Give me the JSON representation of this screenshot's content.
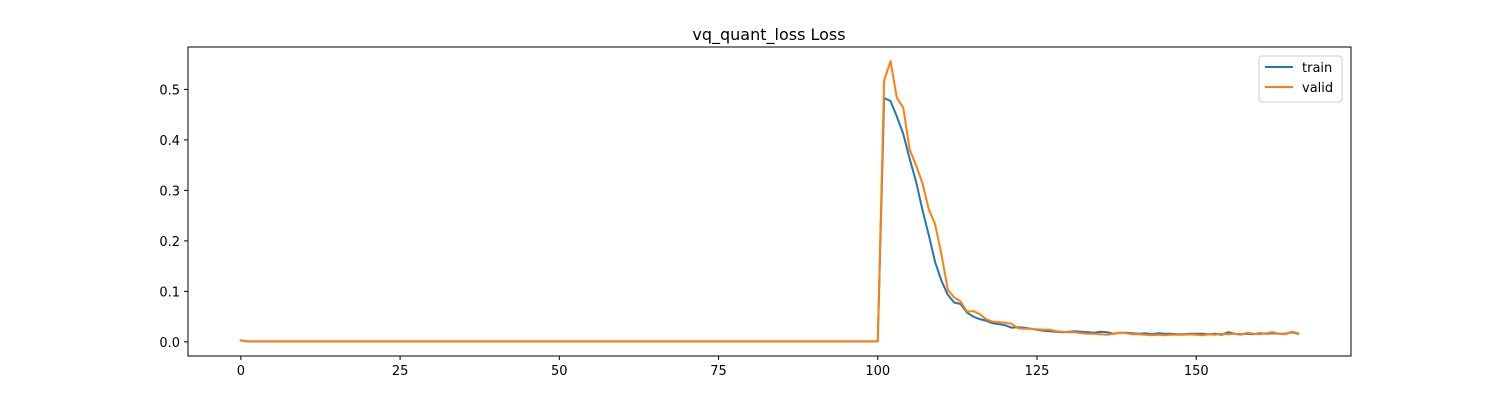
{
  "chart_data": {
    "type": "line",
    "title": "vq_quant_loss Loss",
    "xlabel": "",
    "ylabel": "",
    "xlim": [
      -8.3,
      174.3
    ],
    "ylim": [
      -0.028,
      0.584
    ],
    "xticks": [
      0,
      25,
      50,
      75,
      100,
      125,
      150
    ],
    "yticks": [
      0.0,
      0.1,
      0.2,
      0.3,
      0.4,
      0.5
    ],
    "ytick_labels": [
      "0.0",
      "0.1",
      "0.2",
      "0.3",
      "0.4",
      "0.5"
    ],
    "grid": false,
    "legend": "top-right",
    "series": [
      {
        "name": "train",
        "color": "#1f77b4",
        "x": [
          0,
          1,
          2,
          3,
          4,
          5,
          10,
          20,
          30,
          40,
          50,
          60,
          70,
          80,
          90,
          95,
          99,
          100,
          101,
          102,
          103,
          104,
          105,
          106,
          107,
          108,
          109,
          110,
          111,
          112,
          113,
          114,
          115,
          116,
          117,
          118,
          119,
          120,
          121,
          122,
          123,
          124,
          125,
          126,
          127,
          128,
          129,
          130,
          131,
          132,
          133,
          134,
          135,
          136,
          137,
          138,
          139,
          140,
          141,
          142,
          143,
          144,
          145,
          146,
          147,
          148,
          149,
          150,
          151,
          152,
          153,
          154,
          155,
          156,
          157,
          158,
          159,
          160,
          161,
          162,
          163,
          164,
          165,
          166
        ],
        "values": [
          0.003,
          0.001,
          0.001,
          0.001,
          0.001,
          0.001,
          0.001,
          0.001,
          0.001,
          0.001,
          0.001,
          0.001,
          0.001,
          0.001,
          0.001,
          0.001,
          0.001,
          0.001,
          0.483,
          0.477,
          0.446,
          0.412,
          0.363,
          0.318,
          0.262,
          0.212,
          0.158,
          0.121,
          0.093,
          0.078,
          0.075,
          0.058,
          0.05,
          0.045,
          0.042,
          0.037,
          0.035,
          0.033,
          0.028,
          0.029,
          0.028,
          0.026,
          0.024,
          0.022,
          0.021,
          0.02,
          0.019,
          0.02,
          0.021,
          0.02,
          0.019,
          0.018,
          0.02,
          0.019,
          0.016,
          0.018,
          0.018,
          0.017,
          0.016,
          0.017,
          0.015,
          0.017,
          0.016,
          0.016,
          0.015,
          0.015,
          0.016,
          0.016,
          0.016,
          0.015,
          0.016,
          0.014,
          0.019,
          0.016,
          0.015,
          0.016,
          0.015,
          0.017,
          0.016,
          0.017,
          0.016,
          0.016,
          0.019,
          0.016
        ]
      },
      {
        "name": "valid",
        "color": "#ff7f0e",
        "x": [
          0,
          1,
          2,
          3,
          4,
          5,
          10,
          20,
          30,
          40,
          50,
          60,
          70,
          80,
          90,
          95,
          99,
          100,
          101,
          102,
          103,
          104,
          105,
          106,
          107,
          108,
          109,
          110,
          111,
          112,
          113,
          114,
          115,
          116,
          117,
          118,
          119,
          120,
          121,
          122,
          123,
          124,
          125,
          126,
          127,
          128,
          129,
          130,
          131,
          132,
          133,
          134,
          135,
          136,
          137,
          138,
          139,
          140,
          141,
          142,
          143,
          144,
          145,
          146,
          147,
          148,
          149,
          150,
          151,
          152,
          153,
          154,
          155,
          156,
          157,
          158,
          159,
          160,
          161,
          162,
          163,
          164,
          165,
          166
        ],
        "values": [
          0.003,
          0.001,
          0.001,
          0.001,
          0.001,
          0.001,
          0.001,
          0.001,
          0.001,
          0.001,
          0.001,
          0.001,
          0.001,
          0.001,
          0.001,
          0.001,
          0.001,
          0.001,
          0.518,
          0.556,
          0.483,
          0.464,
          0.381,
          0.35,
          0.315,
          0.263,
          0.233,
          0.173,
          0.103,
          0.088,
          0.08,
          0.06,
          0.061,
          0.055,
          0.045,
          0.04,
          0.039,
          0.038,
          0.036,
          0.027,
          0.026,
          0.026,
          0.025,
          0.024,
          0.024,
          0.021,
          0.02,
          0.019,
          0.019,
          0.017,
          0.016,
          0.016,
          0.015,
          0.014,
          0.016,
          0.018,
          0.017,
          0.015,
          0.015,
          0.014,
          0.013,
          0.014,
          0.013,
          0.014,
          0.014,
          0.014,
          0.015,
          0.014,
          0.013,
          0.015,
          0.014,
          0.016,
          0.015,
          0.016,
          0.014,
          0.018,
          0.016,
          0.015,
          0.017,
          0.019,
          0.016,
          0.015,
          0.02,
          0.017
        ]
      }
    ]
  }
}
